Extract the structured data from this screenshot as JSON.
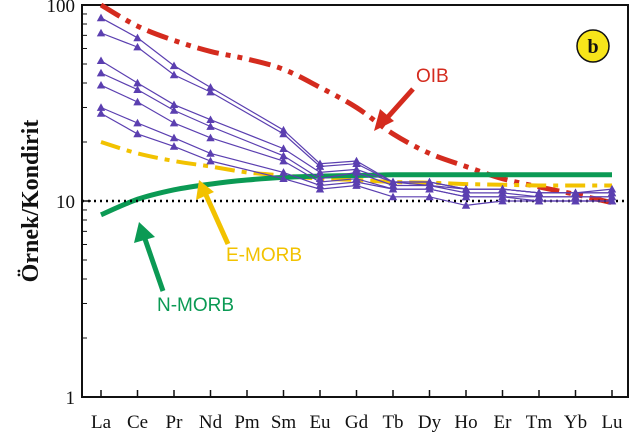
{
  "chart_data": {
    "type": "line",
    "yscale": "log",
    "ylim": [
      1,
      100
    ],
    "ylabel": "Örnek/Kondirit",
    "xlabel": "",
    "grid": false,
    "categories": [
      "La",
      "Ce",
      "Pr",
      "Nd",
      "Pm",
      "Sm",
      "Eu",
      "Gd",
      "Tb",
      "Dy",
      "Ho",
      "Er",
      "Tm",
      "Yb",
      "Lu"
    ],
    "y_ticks": [
      {
        "value": 1,
        "label": "1"
      },
      {
        "value": 10,
        "label": "10"
      },
      {
        "value": 100,
        "label": "100"
      }
    ],
    "panel_label": "b",
    "sample_color": "#5b3fb0",
    "samples": [
      {
        "values": [
          86,
          68,
          49,
          38,
          null,
          23,
          15.5,
          16,
          12.5,
          12.5,
          11.5,
          11.5,
          11,
          11,
          11.5
        ]
      },
      {
        "values": [
          72,
          61,
          44,
          36,
          null,
          22,
          15,
          15.5,
          12.5,
          12,
          11.5,
          11.5,
          11,
          11,
          11
        ]
      },
      {
        "values": [
          52,
          40,
          31,
          26,
          null,
          18.5,
          14,
          14.5,
          12.5,
          12.5,
          11.5,
          11.5,
          11,
          11,
          11
        ]
      },
      {
        "values": [
          45,
          37,
          29,
          24,
          null,
          17,
          13,
          14,
          12,
          12,
          11,
          11,
          10.5,
          10.5,
          10.5
        ]
      },
      {
        "values": [
          39,
          32,
          25,
          21,
          null,
          16,
          12.5,
          13,
          11.5,
          11.5,
          10.5,
          10.5,
          10.5,
          10.5,
          10.5
        ]
      },
      {
        "values": [
          30,
          25,
          21,
          17.5,
          null,
          14,
          12,
          12.5,
          11.5,
          11.5,
          10.5,
          10.5,
          10,
          10,
          10
        ]
      },
      {
        "values": [
          28,
          22,
          19,
          16,
          null,
          13,
          11.5,
          12,
          10.5,
          10.5,
          9.5,
          10,
          10,
          10,
          10
        ]
      }
    ],
    "reference_lines": [
      {
        "name": "OIB",
        "color": "#d42b1e",
        "style": "dash-dot-dot",
        "values": [
          100,
          78,
          66,
          58,
          53,
          47,
          38,
          30,
          22,
          17.5,
          15,
          13,
          11.8,
          10.8,
          9.8
        ]
      },
      {
        "name": "E-MORB",
        "color": "#f2c200",
        "style": "dash-dot",
        "values": [
          20,
          17.5,
          16,
          15,
          14,
          13.5,
          13,
          12.8,
          12.5,
          12.4,
          12.2,
          12.1,
          12,
          12,
          12
        ]
      },
      {
        "name": "N-MORB",
        "color": "#0b9a54",
        "style": "solid",
        "values": [
          8.5,
          10.2,
          11.4,
          12.2,
          12.8,
          13.2,
          13.4,
          13.5,
          13.6,
          13.6,
          13.6,
          13.6,
          13.6,
          13.6,
          13.6
        ]
      },
      {
        "name": "chondrite-10",
        "color": "#000000",
        "style": "dotted",
        "values": [
          10,
          10,
          10,
          10,
          10,
          10,
          10,
          10,
          10,
          10,
          10,
          10,
          10,
          10,
          10
        ]
      }
    ],
    "annotations": [
      {
        "text": "OIB",
        "color": "#d42b1e"
      },
      {
        "text": "E-MORB",
        "color": "#f2c200"
      },
      {
        "text": "N-MORB",
        "color": "#0b9a54"
      }
    ]
  }
}
